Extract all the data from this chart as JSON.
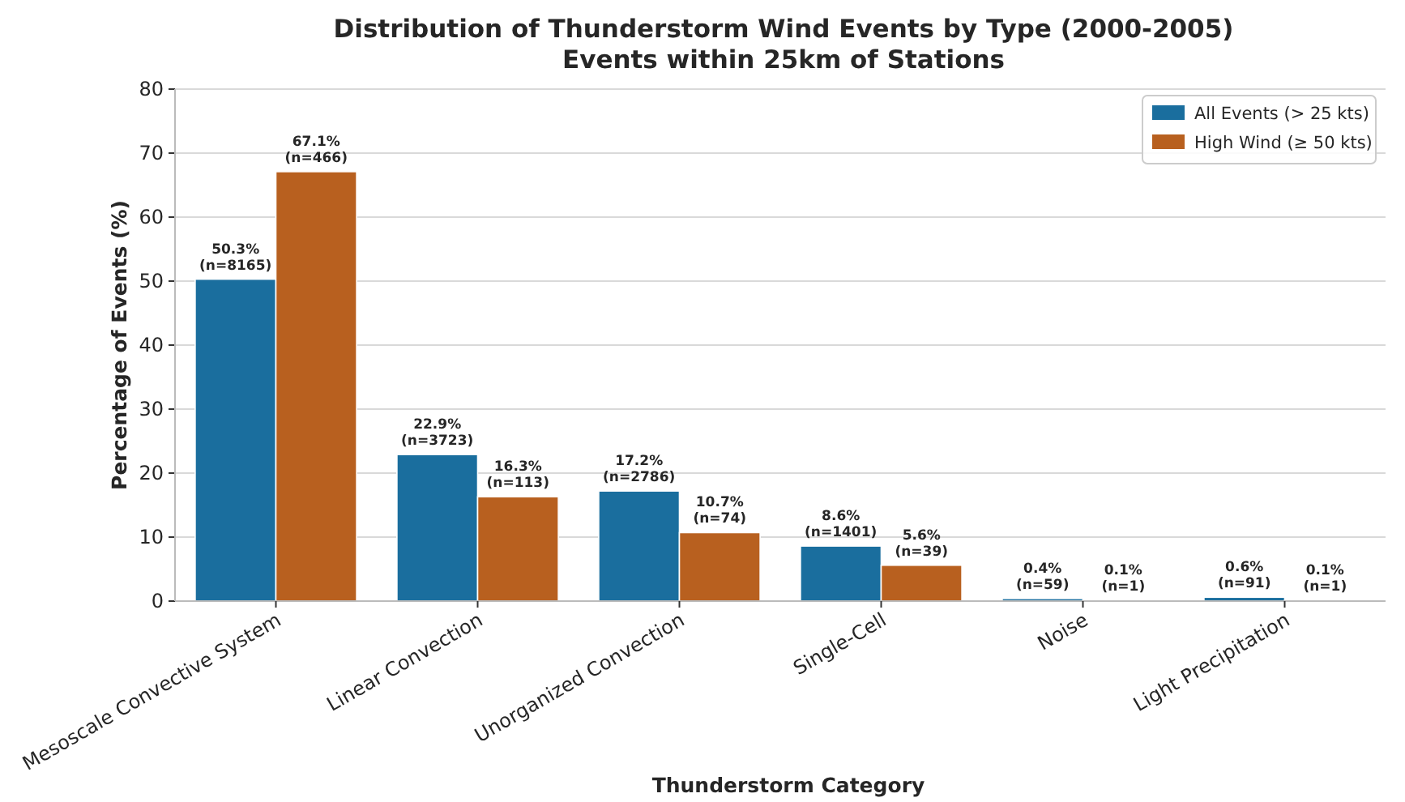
{
  "chart_data": {
    "type": "bar",
    "title": "Distribution of Thunderstorm Wind Events by Type (2000-2005)",
    "subtitle": "Events within 25km of Stations",
    "xlabel": "Thunderstorm Category",
    "ylabel": "Percentage of Events (%)",
    "categories": [
      "Mesoscale Convective System",
      "Linear Convection",
      "Unorganized Convection",
      "Single-Cell",
      "Noise",
      "Light Precipitation"
    ],
    "series": [
      {
        "name": "All Events (> 25 kts)",
        "color": "#1a6e9e",
        "values": [
          50.3,
          22.9,
          17.2,
          8.6,
          0.4,
          0.6
        ],
        "value_labels": [
          "50.3%\n(n=8165)",
          "22.9%\n(n=3723)",
          "17.2%\n(n=2786)",
          "8.6%\n(n=1401)",
          "0.4%\n(n=59)",
          "0.6%\n(n=91)"
        ]
      },
      {
        "name": "High Wind (≥ 50 kts)",
        "color": "#b8601f",
        "values": [
          67.1,
          16.3,
          10.7,
          5.6,
          0.1,
          0.1
        ],
        "value_labels": [
          "67.1%\n(n=466)",
          "16.3%\n(n=113)",
          "10.7%\n(n=74)",
          "5.6%\n(n=39)",
          "0.1%\n(n=1)",
          "0.1%\n(n=1)"
        ]
      }
    ],
    "ylim": [
      0,
      80
    ],
    "yticks": [
      0,
      10,
      20,
      30,
      40,
      50,
      60,
      70,
      80
    ],
    "grid": "y",
    "legend": "top right"
  }
}
